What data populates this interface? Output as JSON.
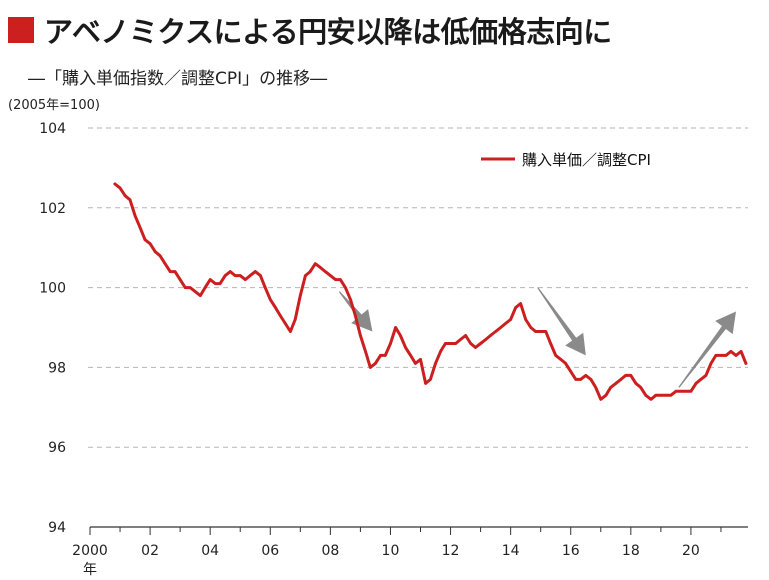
{
  "header": {
    "title": "アベノミクスによる円安以降は低価格志向に",
    "subtitle": "―「購入単価指数／調整CPI」の推移―",
    "unit": "(2005年=100)"
  },
  "colors": {
    "accent": "#cc1f1f",
    "line": "#cc1f1f",
    "arrow": "#8a8a8a",
    "grid": "#b5b5b5"
  },
  "chart_data": {
    "type": "line",
    "xlabel": "年",
    "ylabel": "",
    "ylim": [
      94,
      104
    ],
    "xlim": [
      2000,
      2021.9
    ],
    "yticks": [
      94,
      96,
      98,
      100,
      102,
      104
    ],
    "xticks": [
      {
        "value": 2000,
        "label": "2000"
      },
      {
        "value": 2002,
        "label": "02"
      },
      {
        "value": 2004,
        "label": "04"
      },
      {
        "value": 2006,
        "label": "06"
      },
      {
        "value": 2008,
        "label": "08"
      },
      {
        "value": 2010,
        "label": "10"
      },
      {
        "value": 2012,
        "label": "12"
      },
      {
        "value": 2014,
        "label": "14"
      },
      {
        "value": 2016,
        "label": "16"
      },
      {
        "value": 2018,
        "label": "18"
      },
      {
        "value": 2020,
        "label": "20"
      }
    ],
    "grid": true,
    "legend_position": "top-right",
    "series": [
      {
        "name": "購入単価／調整CPI",
        "points": [
          [
            2000.83,
            102.6
          ],
          [
            2001.0,
            102.5
          ],
          [
            2001.17,
            102.3
          ],
          [
            2001.33,
            102.2
          ],
          [
            2001.5,
            101.8
          ],
          [
            2001.67,
            101.5
          ],
          [
            2001.83,
            101.2
          ],
          [
            2002.0,
            101.1
          ],
          [
            2002.17,
            100.9
          ],
          [
            2002.33,
            100.8
          ],
          [
            2002.5,
            100.6
          ],
          [
            2002.67,
            100.4
          ],
          [
            2002.83,
            100.4
          ],
          [
            2003.0,
            100.2
          ],
          [
            2003.17,
            100.0
          ],
          [
            2003.33,
            100.0
          ],
          [
            2003.5,
            99.9
          ],
          [
            2003.67,
            99.8
          ],
          [
            2003.83,
            100.0
          ],
          [
            2004.0,
            100.2
          ],
          [
            2004.17,
            100.1
          ],
          [
            2004.33,
            100.1
          ],
          [
            2004.5,
            100.3
          ],
          [
            2004.67,
            100.4
          ],
          [
            2004.83,
            100.3
          ],
          [
            2005.0,
            100.3
          ],
          [
            2005.17,
            100.2
          ],
          [
            2005.33,
            100.3
          ],
          [
            2005.5,
            100.4
          ],
          [
            2005.67,
            100.3
          ],
          [
            2005.83,
            100.0
          ],
          [
            2006.0,
            99.7
          ],
          [
            2006.17,
            99.5
          ],
          [
            2006.33,
            99.3
          ],
          [
            2006.5,
            99.1
          ],
          [
            2006.67,
            98.9
          ],
          [
            2006.83,
            99.2
          ],
          [
            2007.0,
            99.8
          ],
          [
            2007.17,
            100.3
          ],
          [
            2007.33,
            100.4
          ],
          [
            2007.5,
            100.6
          ],
          [
            2007.67,
            100.5
          ],
          [
            2007.83,
            100.4
          ],
          [
            2008.0,
            100.3
          ],
          [
            2008.17,
            100.2
          ],
          [
            2008.33,
            100.2
          ],
          [
            2008.5,
            100.0
          ],
          [
            2008.67,
            99.7
          ],
          [
            2008.83,
            99.3
          ],
          [
            2009.0,
            98.8
          ],
          [
            2009.17,
            98.4
          ],
          [
            2009.33,
            98.0
          ],
          [
            2009.5,
            98.1
          ],
          [
            2009.67,
            98.3
          ],
          [
            2009.83,
            98.3
          ],
          [
            2010.0,
            98.6
          ],
          [
            2010.17,
            99.0
          ],
          [
            2010.33,
            98.8
          ],
          [
            2010.5,
            98.5
          ],
          [
            2010.67,
            98.3
          ],
          [
            2010.83,
            98.1
          ],
          [
            2011.0,
            98.2
          ],
          [
            2011.17,
            97.6
          ],
          [
            2011.33,
            97.7
          ],
          [
            2011.5,
            98.1
          ],
          [
            2011.67,
            98.4
          ],
          [
            2011.83,
            98.6
          ],
          [
            2012.0,
            98.6
          ],
          [
            2012.17,
            98.6
          ],
          [
            2012.33,
            98.7
          ],
          [
            2012.5,
            98.8
          ],
          [
            2012.67,
            98.6
          ],
          [
            2012.83,
            98.5
          ],
          [
            2013.0,
            98.6
          ],
          [
            2013.17,
            98.7
          ],
          [
            2013.33,
            98.8
          ],
          [
            2013.5,
            98.9
          ],
          [
            2013.67,
            99.0
          ],
          [
            2013.83,
            99.1
          ],
          [
            2014.0,
            99.2
          ],
          [
            2014.17,
            99.5
          ],
          [
            2014.33,
            99.6
          ],
          [
            2014.5,
            99.2
          ],
          [
            2014.67,
            99.0
          ],
          [
            2014.83,
            98.9
          ],
          [
            2015.0,
            98.9
          ],
          [
            2015.17,
            98.9
          ],
          [
            2015.33,
            98.6
          ],
          [
            2015.5,
            98.3
          ],
          [
            2015.67,
            98.2
          ],
          [
            2015.83,
            98.1
          ],
          [
            2016.0,
            97.9
          ],
          [
            2016.17,
            97.7
          ],
          [
            2016.33,
            97.7
          ],
          [
            2016.5,
            97.8
          ],
          [
            2016.67,
            97.7
          ],
          [
            2016.83,
            97.5
          ],
          [
            2017.0,
            97.2
          ],
          [
            2017.17,
            97.3
          ],
          [
            2017.33,
            97.5
          ],
          [
            2017.5,
            97.6
          ],
          [
            2017.67,
            97.7
          ],
          [
            2017.83,
            97.8
          ],
          [
            2018.0,
            97.8
          ],
          [
            2018.17,
            97.6
          ],
          [
            2018.33,
            97.5
          ],
          [
            2018.5,
            97.3
          ],
          [
            2018.67,
            97.2
          ],
          [
            2018.83,
            97.3
          ],
          [
            2019.0,
            97.3
          ],
          [
            2019.17,
            97.3
          ],
          [
            2019.33,
            97.3
          ],
          [
            2019.5,
            97.4
          ],
          [
            2019.67,
            97.4
          ],
          [
            2019.83,
            97.4
          ],
          [
            2020.0,
            97.4
          ],
          [
            2020.17,
            97.6
          ],
          [
            2020.33,
            97.7
          ],
          [
            2020.5,
            97.8
          ],
          [
            2020.67,
            98.1
          ],
          [
            2020.83,
            98.3
          ],
          [
            2021.0,
            98.3
          ],
          [
            2021.17,
            98.3
          ],
          [
            2021.33,
            98.4
          ],
          [
            2021.5,
            98.3
          ],
          [
            2021.67,
            98.4
          ],
          [
            2021.83,
            98.1
          ]
        ]
      }
    ],
    "annotations": [
      {
        "type": "arrow",
        "direction": "down",
        "from": [
          2008.3,
          99.9
        ],
        "to": [
          2009.4,
          98.9
        ]
      },
      {
        "type": "arrow",
        "direction": "down",
        "from": [
          2014.9,
          100.0
        ],
        "to": [
          2016.5,
          98.3
        ]
      },
      {
        "type": "arrow",
        "direction": "up",
        "from": [
          2019.6,
          97.5
        ],
        "to": [
          2021.5,
          99.4
        ]
      }
    ]
  }
}
